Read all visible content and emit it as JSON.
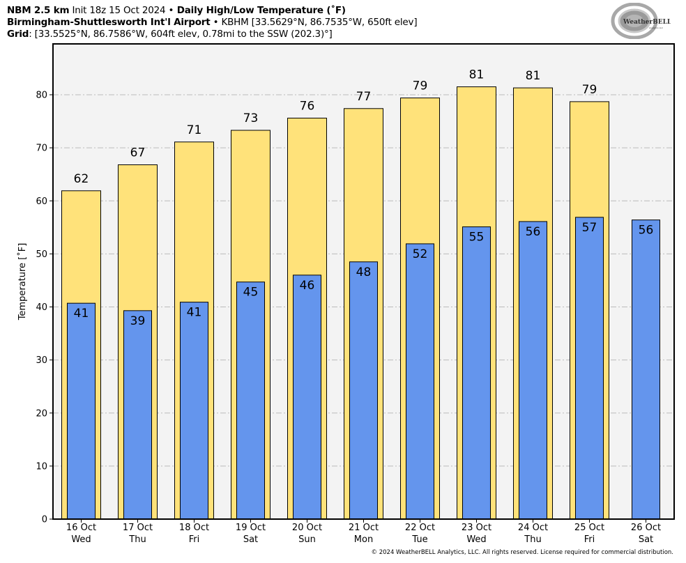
{
  "header": {
    "line1": {
      "bold1": "NBM 2.5 km",
      "text1": " Init 18z 15 Oct 2024 ",
      "bullet": "•",
      "bold2": " Daily High/Low Temperature (˚F)"
    },
    "line2": {
      "bold1": "Birmingham-Shuttlesworth Int'l Airport",
      "bullet": " • ",
      "text1": "KBHM [33.5629°N, 86.7535°W, 650ft elev]"
    },
    "line3": {
      "bold1": "Grid",
      "text1": ": [33.5525°N, 86.7586°W, 604ft elev, 0.78mi to the SSW (202.3)°]"
    }
  },
  "logo": {
    "name": "WeatherBELL",
    "sub": "Analytics LLC",
    "icon": "weatherbell-swirl-logo"
  },
  "copyright": "© 2024 WeatherBELL Analytics, LLC. All rights reserved. License required for commercial distribution.",
  "colors": {
    "high": "#ffe27a",
    "low": "#6495ed",
    "plot_bg": "#f3f3f3",
    "grid": "#bbbbbb"
  },
  "chart_data": {
    "type": "bar",
    "title": "Daily High/Low Temperature (˚F)",
    "xlabel": "",
    "ylabel": "Temperature [˚F]",
    "ylim": [
      0,
      90
    ],
    "yticks": [
      0,
      10,
      20,
      30,
      40,
      50,
      60,
      70,
      80
    ],
    "grid": true,
    "categories": [
      [
        "16 Oct",
        "Wed"
      ],
      [
        "17 Oct",
        "Thu"
      ],
      [
        "18 Oct",
        "Fri"
      ],
      [
        "19 Oct",
        "Sat"
      ],
      [
        "20 Oct",
        "Sun"
      ],
      [
        "21 Oct",
        "Mon"
      ],
      [
        "22 Oct",
        "Tue"
      ],
      [
        "23 Oct",
        "Wed"
      ],
      [
        "24 Oct",
        "Thu"
      ],
      [
        "25 Oct",
        "Fri"
      ],
      [
        "26 Oct",
        "Sat"
      ]
    ],
    "series": [
      {
        "name": "High",
        "values": [
          61.9,
          66.8,
          71.1,
          73.3,
          75.6,
          77.4,
          79.4,
          81.5,
          81.3,
          78.7,
          null
        ],
        "labels": [
          "62",
          "67",
          "71",
          "73",
          "76",
          "77",
          "79",
          "81",
          "81",
          "79",
          null
        ]
      },
      {
        "name": "Low",
        "values": [
          40.7,
          39.3,
          40.9,
          44.7,
          46.0,
          48.5,
          51.9,
          55.1,
          56.1,
          56.9,
          56.4
        ],
        "labels": [
          "41",
          "39",
          "41",
          "45",
          "46",
          "48",
          "52",
          "55",
          "56",
          "57",
          "56"
        ]
      }
    ]
  }
}
